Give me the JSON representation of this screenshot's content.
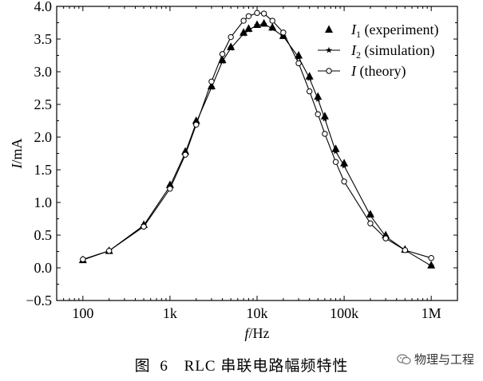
{
  "chart_data": {
    "type": "line",
    "xscale": "log",
    "xlabel": "f",
    "xunit": "/Hz",
    "ylabel": "I",
    "yunit": "/mA",
    "ylim": [
      -0.5,
      4.0
    ],
    "yticks": [
      -0.5,
      0.0,
      0.5,
      1.0,
      1.5,
      2.0,
      2.5,
      3.0,
      3.5,
      4.0
    ],
    "ytick_labels": [
      "−0.5",
      "0.0",
      "0.5",
      "1.0",
      "1.5",
      "2.0",
      "2.5",
      "3.0",
      "3.5",
      "4.0"
    ],
    "xlim": [
      50,
      2000000
    ],
    "xticks": [
      100,
      1000,
      10000,
      100000,
      1000000
    ],
    "xtick_labels": [
      "100",
      "1k",
      "10k",
      "100k",
      "1M"
    ],
    "legend_position": "top-right",
    "series": [
      {
        "name": "I1 (experiment)",
        "symbol": "I",
        "subscript": "1",
        "desc": " (experiment)",
        "marker": "triangle",
        "line": false,
        "x": [
          100,
          200,
          500,
          1000,
          1500,
          2000,
          3000,
          4000,
          5000,
          7000,
          8000,
          10000,
          12000,
          15000,
          20000,
          30000,
          40000,
          50000,
          60000,
          80000,
          100000,
          200000,
          300000,
          500000,
          1000000
        ],
        "y": [
          0.12,
          0.26,
          0.66,
          1.27,
          1.78,
          2.25,
          2.78,
          3.18,
          3.38,
          3.6,
          3.66,
          3.72,
          3.74,
          3.68,
          3.55,
          3.25,
          2.93,
          2.62,
          2.32,
          1.82,
          1.6,
          0.82,
          0.5,
          0.28,
          0.04
        ]
      },
      {
        "name": "I2 (simulation)",
        "symbol": "I",
        "subscript": "2",
        "desc": " (simulation)",
        "marker": "star",
        "line": true,
        "x": [
          100,
          200,
          500,
          1000,
          1500,
          2000,
          3000,
          4000,
          5000,
          7000,
          8000,
          10000,
          12000,
          15000,
          20000,
          30000,
          40000,
          50000,
          60000,
          80000,
          100000,
          200000,
          300000,
          500000,
          1000000
        ],
        "y": [
          0.12,
          0.26,
          0.65,
          1.25,
          1.76,
          2.22,
          2.76,
          3.16,
          3.36,
          3.58,
          3.64,
          3.71,
          3.73,
          3.66,
          3.54,
          3.22,
          2.9,
          2.58,
          2.28,
          1.78,
          1.56,
          0.8,
          0.48,
          0.27,
          0.03
        ]
      },
      {
        "name": "I (theory)",
        "symbol": "I",
        "subscript": "",
        "desc": " (theory)",
        "marker": "circle",
        "line": true,
        "x": [
          100,
          200,
          500,
          1000,
          1500,
          2000,
          3000,
          4000,
          5000,
          7000,
          8000,
          10000,
          12000,
          15000,
          20000,
          30000,
          40000,
          50000,
          60000,
          80000,
          100000,
          200000,
          300000,
          500000,
          1000000
        ],
        "y": [
          0.13,
          0.26,
          0.63,
          1.21,
          1.73,
          2.19,
          2.85,
          3.27,
          3.53,
          3.78,
          3.85,
          3.9,
          3.89,
          3.78,
          3.6,
          3.13,
          2.7,
          2.35,
          2.05,
          1.62,
          1.32,
          0.68,
          0.45,
          0.27,
          0.15
        ]
      }
    ]
  },
  "caption": {
    "figure_label": "图",
    "figure_number": "6",
    "text": "RLC 串联电路幅频特性"
  },
  "watermark": {
    "icon": "wechat-icon",
    "text": "物理与工程"
  }
}
